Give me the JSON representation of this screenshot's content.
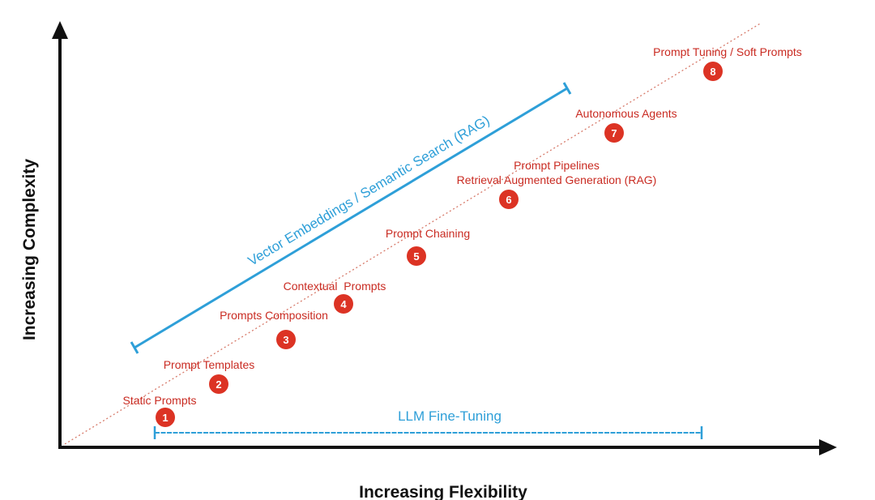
{
  "axes": {
    "x_title": "Increasing Flexibility",
    "y_title": "Increasing Complexity"
  },
  "colors": {
    "step_text": "#c92b22",
    "step_badge": "#dc3324",
    "range": "#2e9fd8",
    "axis": "#111111",
    "diagonal": "#d77a6a"
  },
  "steps": [
    {
      "number": "1",
      "label": "Static Prompts"
    },
    {
      "number": "2",
      "label": "Prompt Templates"
    },
    {
      "number": "3",
      "label": "Prompts Composition"
    },
    {
      "number": "4",
      "label": "Contextual  Prompts"
    },
    {
      "number": "5",
      "label": "Prompt Chaining"
    },
    {
      "number": "6",
      "label": "Prompt Pipelines",
      "label2": "Retrieval Augmented Generation (RAG)"
    },
    {
      "number": "7",
      "label": "Autonomous Agents"
    },
    {
      "number": "8",
      "label": "Prompt Tuning / Soft Prompts"
    }
  ],
  "ranges": {
    "rag": "Vector Embeddings / Semantic Search (RAG)",
    "fine_tuning": "LLM Fine-Tuning"
  }
}
